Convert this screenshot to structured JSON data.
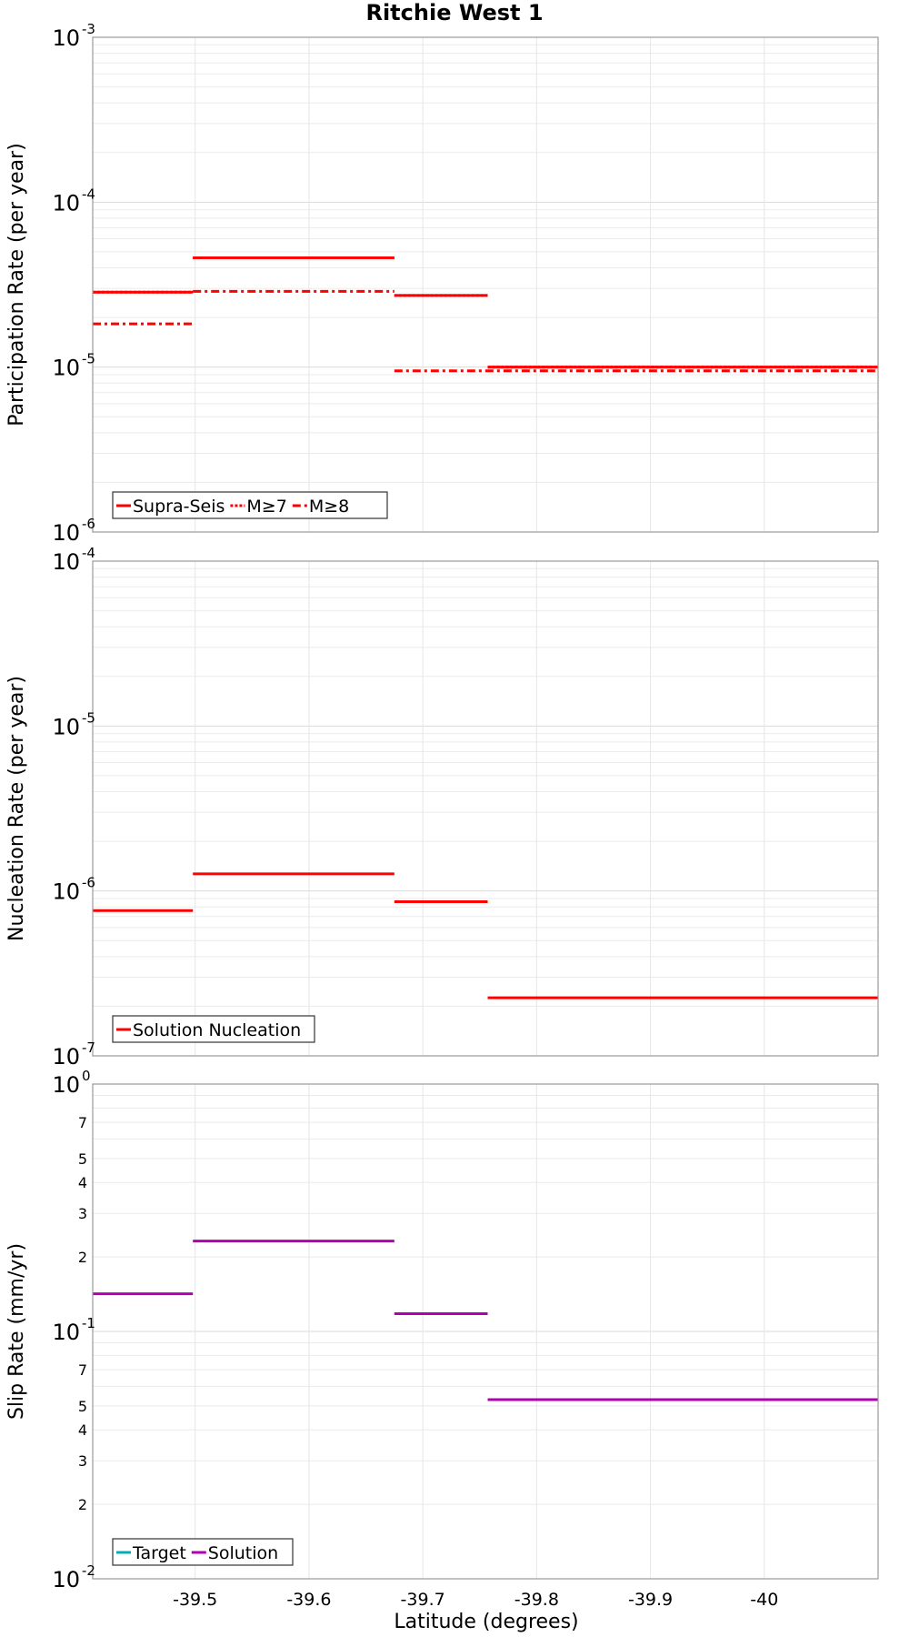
{
  "chart_data": {
    "type": "line",
    "title": "Ritchie West 1",
    "xlabel": "Latitude (degrees)",
    "xlim": [
      -39.41,
      -40.1
    ],
    "xticks": [
      -39.5,
      -39.6,
      -39.7,
      -39.8,
      -39.9,
      -40
    ],
    "xtick_labels": [
      "-39.5",
      "-39.6",
      "-39.7",
      "-39.8",
      "-39.9",
      "-40"
    ],
    "panels": [
      {
        "id": "participation",
        "ylabel": "Participation Rate (per year)",
        "yscale": "log",
        "ylim": [
          1e-06,
          0.001
        ],
        "major_ticks": [
          {
            "value": 1e-06,
            "base": "10",
            "exp": "-6"
          },
          {
            "value": 1e-05,
            "base": "10",
            "exp": "-5"
          },
          {
            "value": 0.0001,
            "base": "10",
            "exp": "-4"
          },
          {
            "value": 0.001,
            "base": "10",
            "exp": "-3"
          }
        ],
        "minor_tick_labels": [],
        "series": [
          {
            "name": "Supra-Seis",
            "color": "#ff0000",
            "style": "solid",
            "segments": [
              {
                "x0": -39.41,
                "x1": -39.498,
                "y": 2.85e-05
              },
              {
                "x0": -39.498,
                "x1": -39.675,
                "y": 4.6e-05
              },
              {
                "x0": -39.675,
                "x1": -39.757,
                "y": 2.72e-05
              },
              {
                "x0": -39.757,
                "x1": -40.1,
                "y": 1e-05
              }
            ]
          },
          {
            "name": "M≥7",
            "color": "#ff0000",
            "style": "dotted",
            "segments": [
              {
                "x0": -39.41,
                "x1": -39.498,
                "y": 2.85e-05
              },
              {
                "x0": -39.498,
                "x1": -39.675,
                "y": 4.6e-05
              },
              {
                "x0": -39.675,
                "x1": -39.757,
                "y": 2.72e-05
              },
              {
                "x0": -39.757,
                "x1": -40.1,
                "y": 1e-05
              }
            ]
          },
          {
            "name": "M≥8",
            "color": "#ff0000",
            "style": "dashdot",
            "segments": [
              {
                "x0": -39.41,
                "x1": -39.498,
                "y": 1.83e-05
              },
              {
                "x0": -39.498,
                "x1": -39.675,
                "y": 2.88e-05
              },
              {
                "x0": -39.675,
                "x1": -40.1,
                "y": 9.5e-06
              }
            ]
          }
        ]
      },
      {
        "id": "nucleation",
        "ylabel": "Nucleation Rate (per year)",
        "yscale": "log",
        "ylim": [
          1e-07,
          0.0001
        ],
        "major_ticks": [
          {
            "value": 1e-07,
            "base": "10",
            "exp": "-7"
          },
          {
            "value": 1e-06,
            "base": "10",
            "exp": "-6"
          },
          {
            "value": 1e-05,
            "base": "10",
            "exp": "-5"
          },
          {
            "value": 0.0001,
            "base": "10",
            "exp": "-4"
          }
        ],
        "minor_tick_labels": [],
        "series": [
          {
            "name": "Solution Nucleation",
            "color": "#ff0000",
            "style": "solid",
            "segments": [
              {
                "x0": -39.41,
                "x1": -39.498,
                "y": 7.6e-07
              },
              {
                "x0": -39.498,
                "x1": -39.675,
                "y": 1.27e-06
              },
              {
                "x0": -39.675,
                "x1": -39.757,
                "y": 8.6e-07
              },
              {
                "x0": -39.757,
                "x1": -40.1,
                "y": 2.25e-07
              }
            ]
          }
        ]
      },
      {
        "id": "slip",
        "ylabel": "Slip Rate (mm/yr)",
        "yscale": "log",
        "ylim": [
          0.01,
          1
        ],
        "major_ticks": [
          {
            "value": 0.01,
            "base": "10",
            "exp": "-2"
          },
          {
            "value": 0.1,
            "base": "10",
            "exp": "-1"
          },
          {
            "value": 1,
            "base": "10",
            "exp": "0"
          }
        ],
        "minor_tick_labels": [
          {
            "value": 0.02,
            "label": "2"
          },
          {
            "value": 0.03,
            "label": "3"
          },
          {
            "value": 0.04,
            "label": "4"
          },
          {
            "value": 0.05,
            "label": "5"
          },
          {
            "value": 0.07,
            "label": "7"
          },
          {
            "value": 0.2,
            "label": "2"
          },
          {
            "value": 0.3,
            "label": "3"
          },
          {
            "value": 0.4,
            "label": "4"
          },
          {
            "value": 0.5,
            "label": "5"
          },
          {
            "value": 0.7,
            "label": "7"
          }
        ],
        "series": [
          {
            "name": "Target",
            "color": "#00b0b0",
            "style": "solid",
            "segments": []
          },
          {
            "name": "Solution",
            "color": "#b000b0",
            "style": "solid",
            "segments": [
              {
                "x0": -39.41,
                "x1": -39.498,
                "y": 0.142
              },
              {
                "x0": -39.498,
                "x1": -39.675,
                "y": 0.232
              },
              {
                "x0": -39.675,
                "x1": -39.757,
                "y": 0.118
              },
              {
                "x0": -39.757,
                "x1": -40.1,
                "y": 0.053
              }
            ]
          }
        ]
      }
    ]
  }
}
